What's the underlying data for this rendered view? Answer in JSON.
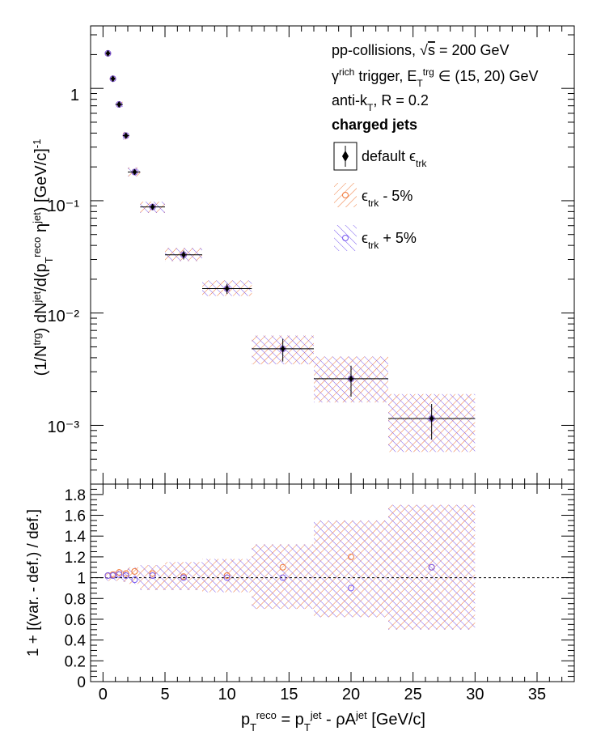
{
  "colors": {
    "default": "#000000",
    "minus": "#f07a3c",
    "plus": "#7a5cf0"
  },
  "annotations": {
    "line1": "pp-collisions, √s = 200 GeV",
    "line2": "γrich trigger, ETtrg ∈ (15, 20) GeV",
    "line3": "anti-kT, R = 0.2",
    "line4": "charged jets"
  },
  "legend": {
    "default": "default ϵtrk",
    "minus": "ϵtrk - 5%",
    "plus": "ϵtrk + 5%"
  },
  "top_panel": {
    "ylabel": "(1/Ntrg) dNjet/d(pTreco ηjet) [GeV/c]-1",
    "ytick_labels": [
      "10⁻³",
      "10⁻²",
      "10⁻¹",
      "1"
    ]
  },
  "bottom_panel": {
    "ylabel": "1 + [(var. - def.) / def.]",
    "ytick_labels": [
      "0",
      "0.2",
      "0.4",
      "0.6",
      "0.8",
      "1",
      "1.2",
      "1.4",
      "1.6",
      "1.8"
    ]
  },
  "xlabel": "pTreco = pTjet - ρAjet [GeV/c]",
  "xtick_labels": [
    "0",
    "5",
    "10",
    "15",
    "20",
    "25",
    "30",
    "35"
  ],
  "chart_data": [
    {
      "type": "scatter",
      "panel": "spectrum",
      "yscale": "log",
      "xlim": [
        -1,
        38
      ],
      "ylim": [
        0.0003,
        3.6
      ],
      "bins": [
        {
          "x": 0.4,
          "xlo": 0.2,
          "xhi": 0.6,
          "y": 2.05,
          "stat_lo": 1.98,
          "stat_hi": 2.12,
          "sys_lo": 1.97,
          "sys_hi": 2.13
        },
        {
          "x": 0.8,
          "xlo": 0.6,
          "xhi": 1.0,
          "y": 1.22,
          "stat_lo": 1.18,
          "stat_hi": 1.26,
          "sys_lo": 1.17,
          "sys_hi": 1.27
        },
        {
          "x": 1.3,
          "xlo": 1.0,
          "xhi": 1.6,
          "y": 0.72,
          "stat_lo": 0.69,
          "stat_hi": 0.75,
          "sys_lo": 0.68,
          "sys_hi": 0.76
        },
        {
          "x": 1.85,
          "xlo": 1.6,
          "xhi": 2.1,
          "y": 0.38,
          "stat_lo": 0.36,
          "stat_hi": 0.4,
          "sys_lo": 0.35,
          "sys_hi": 0.41
        },
        {
          "x": 2.55,
          "xlo": 2.0,
          "xhi": 3.0,
          "y": 0.18,
          "stat_lo": 0.17,
          "stat_hi": 0.19,
          "sys_lo": 0.165,
          "sys_hi": 0.198
        },
        {
          "x": 4.0,
          "xlo": 3.0,
          "xhi": 5.0,
          "y": 0.088,
          "stat_lo": 0.083,
          "stat_hi": 0.093,
          "sys_lo": 0.078,
          "sys_hi": 0.098
        },
        {
          "x": 6.5,
          "xlo": 5.0,
          "xhi": 8.0,
          "y": 0.033,
          "stat_lo": 0.03,
          "stat_hi": 0.036,
          "sys_lo": 0.029,
          "sys_hi": 0.038
        },
        {
          "x": 10.0,
          "xlo": 8.0,
          "xhi": 12.0,
          "y": 0.0165,
          "stat_lo": 0.0148,
          "stat_hi": 0.0182,
          "sys_lo": 0.0142,
          "sys_hi": 0.0195
        },
        {
          "x": 14.5,
          "xlo": 12.0,
          "xhi": 17.0,
          "y": 0.0048,
          "stat_lo": 0.0037,
          "stat_hi": 0.0059,
          "sys_lo": 0.0035,
          "sys_hi": 0.0063
        },
        {
          "x": 20.0,
          "xlo": 17.0,
          "xhi": 23.0,
          "y": 0.0026,
          "stat_lo": 0.0018,
          "stat_hi": 0.0034,
          "sys_lo": 0.0016,
          "sys_hi": 0.0041
        },
        {
          "x": 26.5,
          "xlo": 23.0,
          "xhi": 30.0,
          "y": 0.00115,
          "stat_lo": 0.00075,
          "stat_hi": 0.00155,
          "sys_lo": 0.00058,
          "sys_hi": 0.0019
        }
      ],
      "series": [
        {
          "name": "default ϵtrk",
          "key": "default"
        },
        {
          "name": "ϵtrk - 5%",
          "key": "minus"
        },
        {
          "name": "ϵtrk + 5%",
          "key": "plus"
        }
      ]
    },
    {
      "type": "scatter",
      "panel": "ratio",
      "xlim": [
        -1,
        38
      ],
      "ylim": [
        0,
        1.9
      ],
      "reference_line": 1.0,
      "bins": [
        {
          "x": 0.4,
          "xlo": 0.2,
          "xhi": 0.6,
          "minus": 1.02,
          "plus": 1.02,
          "band_lo": 0.97,
          "band_hi": 1.05
        },
        {
          "x": 0.8,
          "xlo": 0.6,
          "xhi": 1.0,
          "minus": 1.03,
          "plus": 1.02,
          "band_lo": 0.97,
          "band_hi": 1.06
        },
        {
          "x": 1.3,
          "xlo": 1.0,
          "xhi": 1.6,
          "minus": 1.05,
          "plus": 1.03,
          "band_lo": 0.97,
          "band_hi": 1.07
        },
        {
          "x": 1.85,
          "xlo": 1.6,
          "xhi": 2.1,
          "minus": 1.04,
          "plus": 1.02,
          "band_lo": 0.96,
          "band_hi": 1.08
        },
        {
          "x": 2.55,
          "xlo": 2.0,
          "xhi": 3.0,
          "minus": 1.06,
          "plus": 0.98,
          "band_lo": 0.94,
          "band_hi": 1.1
        },
        {
          "x": 4.0,
          "xlo": 3.0,
          "xhi": 5.0,
          "minus": 1.04,
          "plus": 1.02,
          "band_lo": 0.88,
          "band_hi": 1.12
        },
        {
          "x": 6.5,
          "xlo": 5.0,
          "xhi": 8.0,
          "minus": 1.01,
          "plus": 1.0,
          "band_lo": 0.88,
          "band_hi": 1.15
        },
        {
          "x": 10.0,
          "xlo": 8.0,
          "xhi": 12.0,
          "minus": 1.02,
          "plus": 1.0,
          "band_lo": 0.86,
          "band_hi": 1.18
        },
        {
          "x": 14.5,
          "xlo": 12.0,
          "xhi": 17.0,
          "minus": 1.1,
          "plus": 1.0,
          "band_lo": 0.7,
          "band_hi": 1.32
        },
        {
          "x": 20.0,
          "xlo": 17.0,
          "xhi": 23.0,
          "minus": 1.2,
          "plus": 0.9,
          "band_lo": 0.62,
          "band_hi": 1.55
        },
        {
          "x": 26.5,
          "xlo": 23.0,
          "xhi": 30.0,
          "minus": 1.1,
          "plus": 1.1,
          "band_lo": 0.5,
          "band_hi": 1.7
        }
      ]
    }
  ]
}
